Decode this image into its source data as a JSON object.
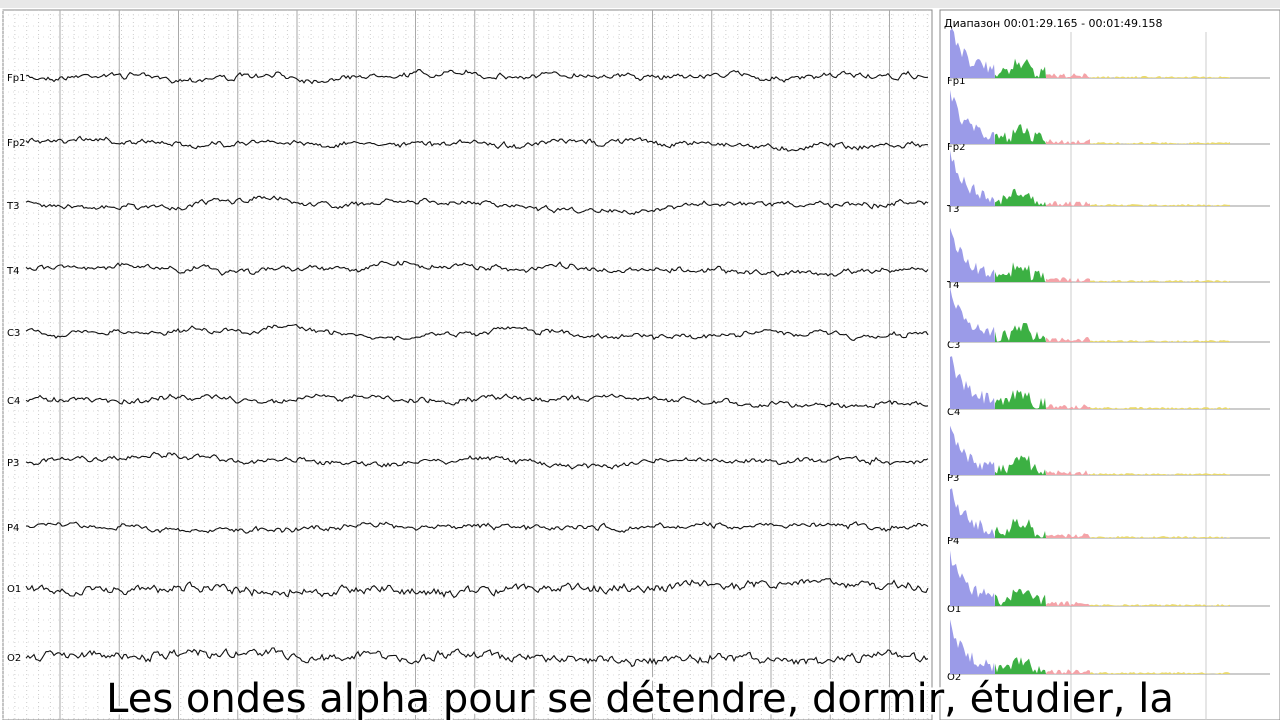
{
  "eeg": {
    "channels": [
      "Fp1",
      "Fp2",
      "T3",
      "T4",
      "C3",
      "C4",
      "P3",
      "P4",
      "O1",
      "O2"
    ]
  },
  "spectrum": {
    "range": "Диапазон 00:01:29.165 - 00:01:49.158",
    "channels": [
      "Fp1",
      "Fp2",
      "T3",
      "T4",
      "C3",
      "C4",
      "P3",
      "P4",
      "O1",
      "O2"
    ]
  },
  "caption": "Les ondes alpha pour se détendre, dormir, étudier, la"
}
